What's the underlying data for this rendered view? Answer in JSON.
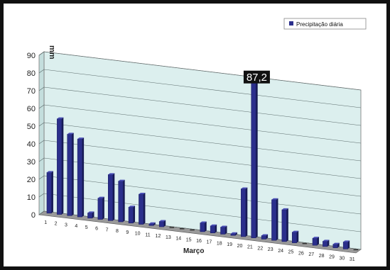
{
  "chart_data": {
    "type": "bar",
    "categories": [
      "1",
      "2",
      "3",
      "4",
      "5",
      "6",
      "7",
      "8",
      "9",
      "10",
      "11",
      "12",
      "13",
      "14",
      "15",
      "16",
      "17",
      "18",
      "19",
      "20",
      "21",
      "22",
      "23",
      "24",
      "25",
      "26",
      "27",
      "28",
      "29",
      "30",
      "31"
    ],
    "series": [
      {
        "name": "Precipitação diária",
        "values": [
          23,
          54,
          46,
          44,
          3,
          12,
          26,
          23,
          9,
          17,
          1,
          3,
          0,
          0,
          0,
          5,
          4,
          4,
          1,
          27,
          87.2,
          2,
          23,
          18,
          6,
          0,
          4,
          3,
          2,
          4,
          0
        ],
        "color": "#2b2f8c"
      }
    ],
    "ylabel": "mm",
    "xlabel": "Março",
    "ylim": [
      0,
      90
    ],
    "yticks": [
      0,
      10,
      20,
      30,
      40,
      50,
      60,
      70,
      80,
      90
    ],
    "grid": true,
    "legend": "top-right",
    "annotation": {
      "label": "87,2",
      "category": "21"
    },
    "colors": {
      "wall": "#dcefee",
      "floor": "#9a9a9a",
      "bar": "#2b2f8c",
      "bar_side": "#161a55",
      "bar_top": "#4a4fb8"
    }
  }
}
